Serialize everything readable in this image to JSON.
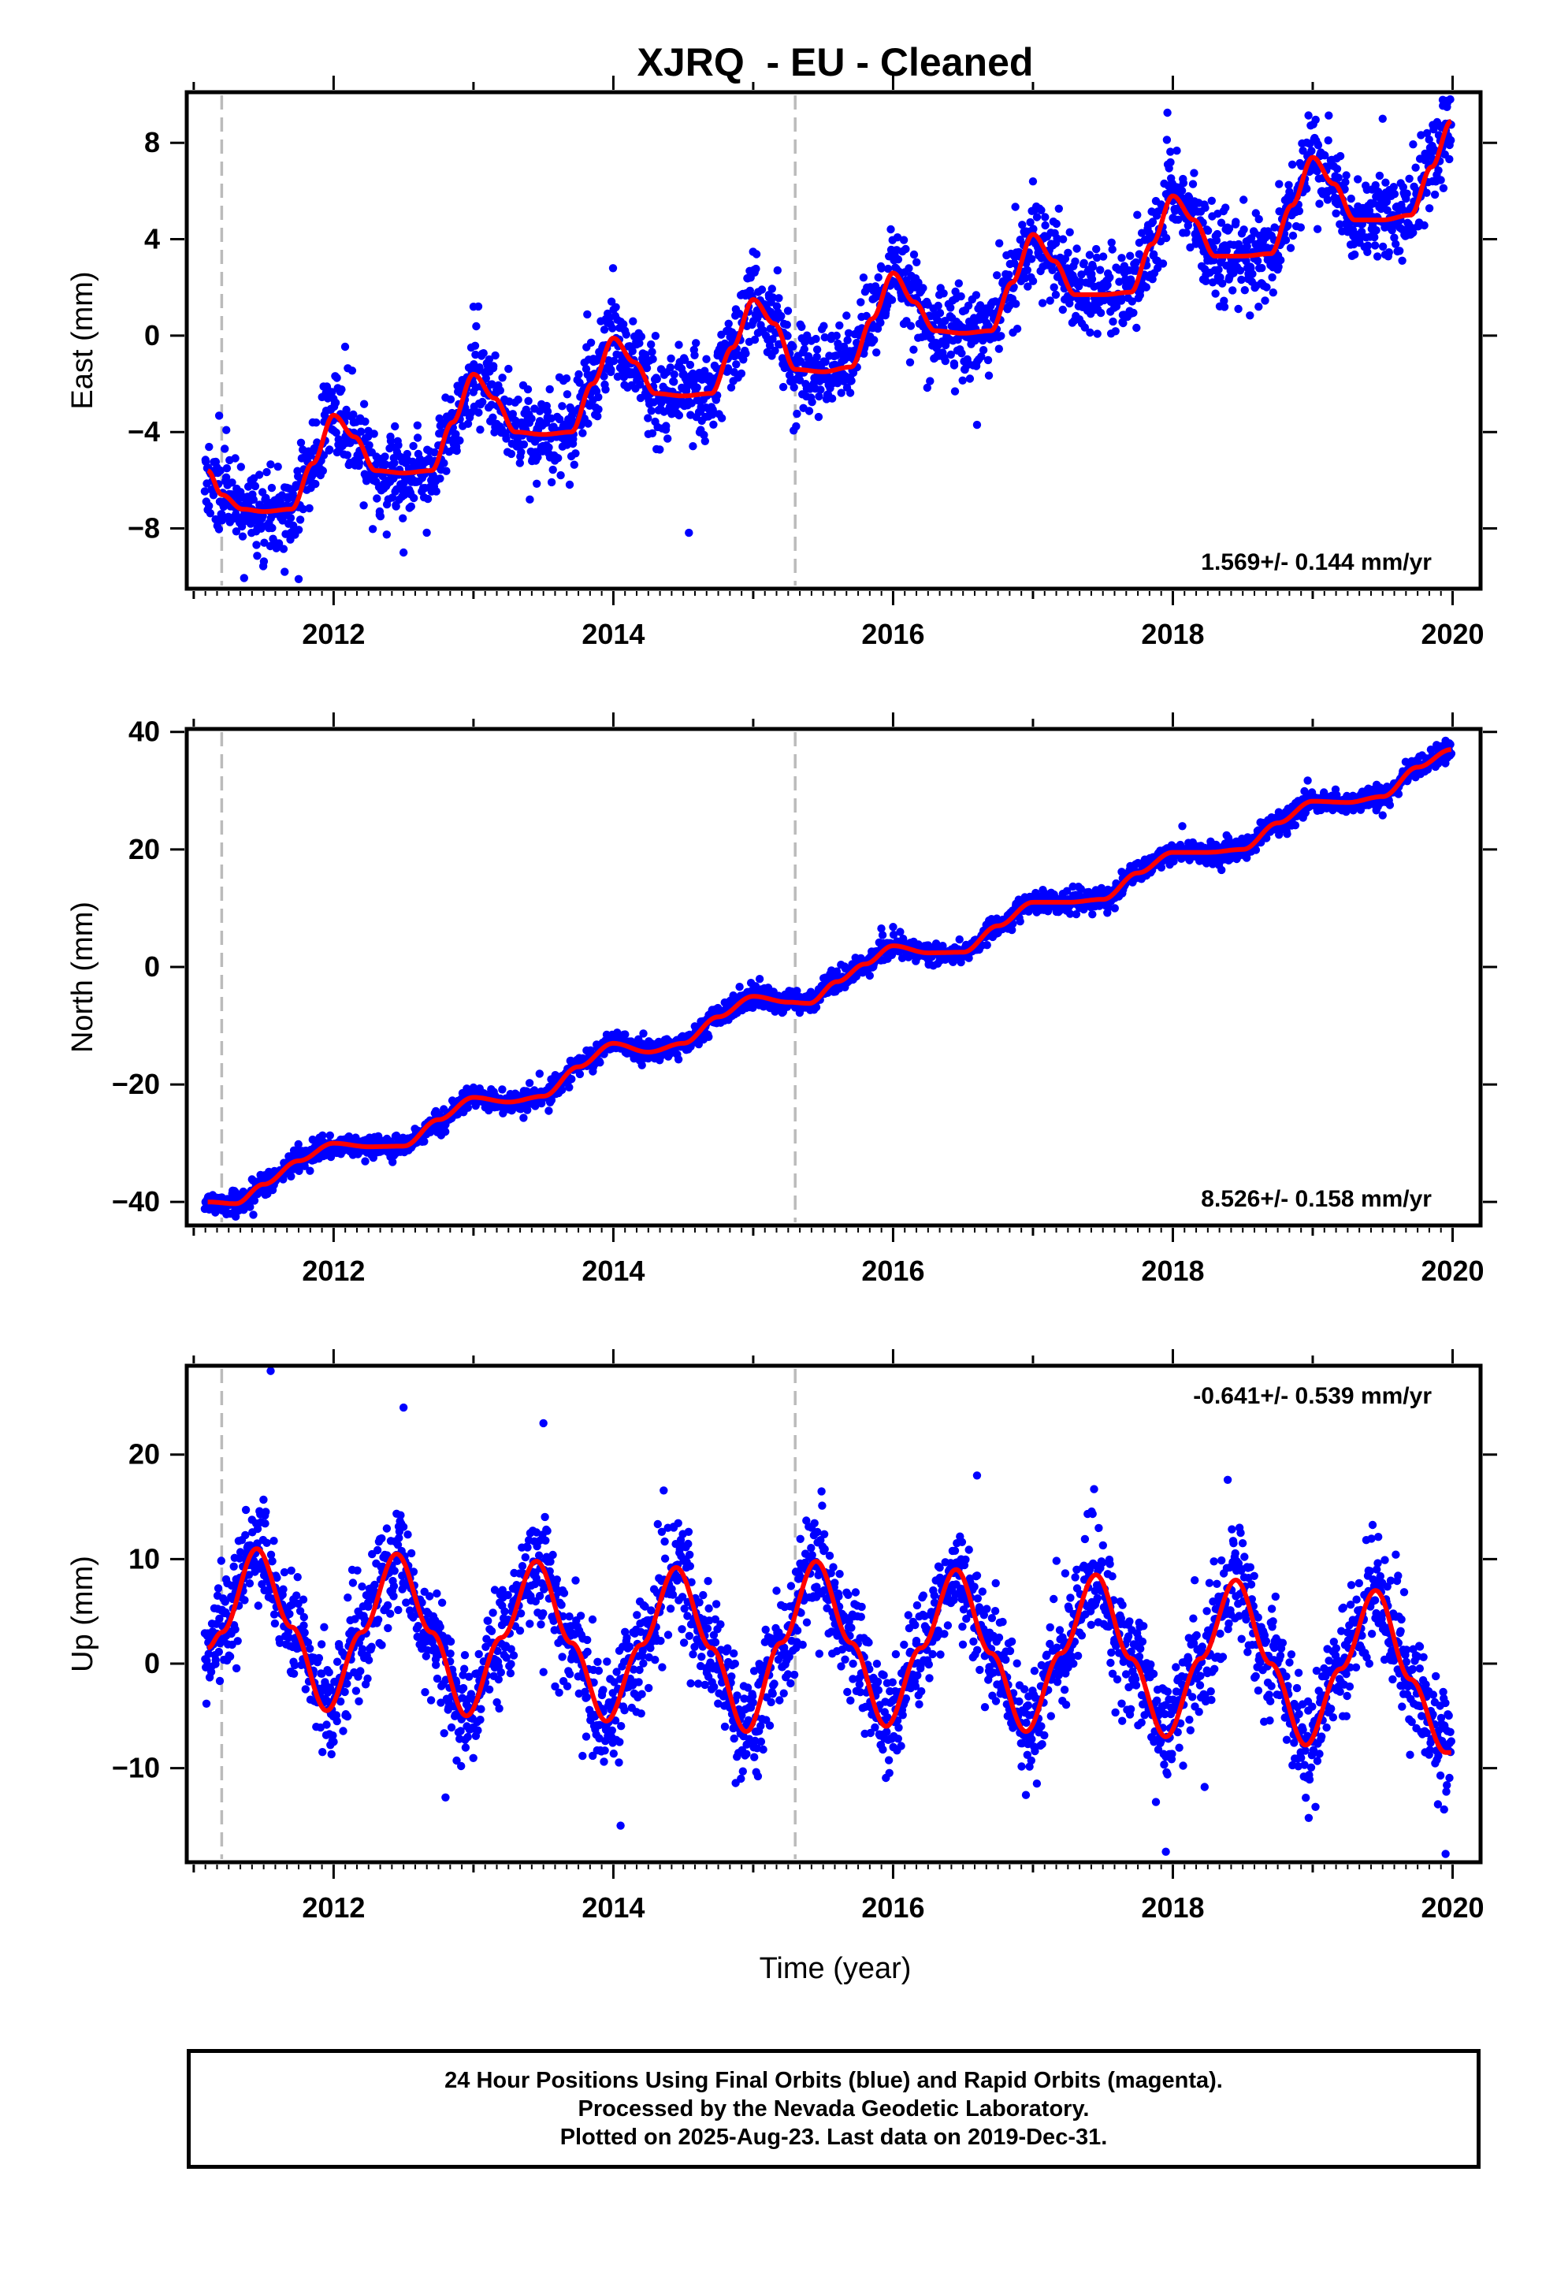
{
  "title": "XJRQ  - EU - Cleaned",
  "xlabel": "Time (year)",
  "footer": {
    "line1": "24 Hour Positions Using Final Orbits (blue) and Rapid Orbits (magenta).",
    "line2": "Processed by the Nevada Geodetic Laboratory.",
    "line3": "Plotted on 2025-Aug-23. Last data on 2019-Dec-31."
  },
  "colors": {
    "points": "#0000ff",
    "model": "#ff0000",
    "breaks": "#bbbbbb",
    "frame": "#000000"
  },
  "chart_data": [
    {
      "type": "scatter",
      "name": "east",
      "ylabel": "East (mm)",
      "rate_label": "1.569+/- 0.144 mm/yr",
      "rate_position": "bottom-right",
      "xlim": [
        2010.95,
        2020.2
      ],
      "ylim": [
        -10.5,
        10.1
      ],
      "x_ticks": [
        "2012",
        "2014",
        "2016",
        "2018",
        "2020"
      ],
      "y_ticks": [
        "−8",
        "−4",
        "0",
        "4",
        "8"
      ],
      "y_tick_values": [
        -8,
        -4,
        0,
        4,
        8
      ],
      "breaks": [
        2011.2,
        2015.3
      ],
      "model": {
        "x": [
          2011.1,
          2011.2,
          2011.35,
          2011.5,
          2011.7,
          2011.85,
          2012.0,
          2012.15,
          2012.3,
          2012.5,
          2012.7,
          2012.85,
          2013.0,
          2013.15,
          2013.3,
          2013.5,
          2013.7,
          2013.85,
          2014.0,
          2014.15,
          2014.3,
          2014.5,
          2014.7,
          2014.85,
          2015.0,
          2015.15,
          2015.3,
          2015.5,
          2015.7,
          2015.85,
          2016.0,
          2016.15,
          2016.3,
          2016.5,
          2016.7,
          2016.85,
          2017.0,
          2017.15,
          2017.3,
          2017.5,
          2017.7,
          2017.85,
          2018.0,
          2018.15,
          2018.3,
          2018.5,
          2018.7,
          2018.85,
          2019.0,
          2019.15,
          2019.3,
          2019.5,
          2019.7,
          2019.85,
          2019.99
        ],
        "y": [
          -5.6,
          -6.6,
          -7.2,
          -7.3,
          -7.2,
          -5.3,
          -3.3,
          -4.2,
          -5.6,
          -5.7,
          -5.6,
          -3.6,
          -1.6,
          -2.6,
          -4.0,
          -4.1,
          -4.0,
          -2.0,
          -0.1,
          -1.1,
          -2.4,
          -2.5,
          -2.4,
          -0.5,
          1.5,
          0.5,
          -1.4,
          -1.5,
          -1.3,
          0.7,
          2.6,
          1.4,
          0.2,
          0.1,
          0.2,
          2.2,
          4.2,
          3.1,
          1.7,
          1.7,
          1.8,
          3.8,
          5.8,
          4.8,
          3.3,
          3.3,
          3.4,
          5.4,
          7.4,
          6.3,
          4.8,
          4.8,
          5.0,
          7.0,
          8.9
        ]
      },
      "scatter_params": {
        "seed": 11,
        "noise": 0.9,
        "outliers": [
          [
            2011.65,
            -9.8
          ],
          [
            2011.75,
            -10.1
          ],
          [
            2012.5,
            -9.0
          ],
          [
            2016.6,
            -3.7
          ],
          [
            2019.5,
            9.0
          ],
          [
            2019.95,
            9.7
          ],
          [
            2017.0,
            6.4
          ],
          [
            2013.0,
            1.2
          ]
        ]
      }
    },
    {
      "type": "scatter",
      "name": "north",
      "ylabel": "North (mm)",
      "rate_label": "8.526+/- 0.158 mm/yr",
      "rate_position": "bottom-right",
      "xlim": [
        2010.95,
        2020.2
      ],
      "ylim": [
        -44,
        40.5
      ],
      "x_ticks": [
        "2012",
        "2014",
        "2016",
        "2018",
        "2020"
      ],
      "y_ticks": [
        "−40",
        "−20",
        "0",
        "20",
        "40"
      ],
      "y_tick_values": [
        -40,
        -20,
        0,
        20,
        40
      ],
      "breaks": [
        2011.2,
        2015.3
      ],
      "model": {
        "x": [
          2011.1,
          2011.3,
          2011.5,
          2011.75,
          2012.0,
          2012.25,
          2012.5,
          2012.75,
          2013.0,
          2013.25,
          2013.5,
          2013.75,
          2014.0,
          2014.25,
          2014.5,
          2014.75,
          2015.0,
          2015.25,
          2015.4,
          2015.6,
          2015.8,
          2016.0,
          2016.25,
          2016.5,
          2016.75,
          2017.0,
          2017.25,
          2017.5,
          2017.75,
          2018.0,
          2018.25,
          2018.5,
          2018.75,
          2019.0,
          2019.25,
          2019.5,
          2019.75,
          2019.99
        ],
        "y": [
          -40.0,
          -40.3,
          -37.0,
          -33.0,
          -30.0,
          -30.6,
          -30.5,
          -26.0,
          -22.2,
          -23.0,
          -22.0,
          -17.0,
          -13.0,
          -14.5,
          -13.0,
          -8.5,
          -5.0,
          -6.0,
          -6.2,
          -2.5,
          0.5,
          3.6,
          2.4,
          2.5,
          7.0,
          11.0,
          11.0,
          11.5,
          16.0,
          19.5,
          19.5,
          20.0,
          24.5,
          28.2,
          28.0,
          29.0,
          34.0,
          37.0
        ]
      },
      "scatter_params": {
        "seed": 23,
        "noise": 0.9,
        "outliers": [
          [
            2011.3,
            -42.5
          ],
          [
            2019.5,
            25.8
          ],
          [
            2016.0,
            6.8
          ],
          [
            2019.95,
            38.5
          ]
        ]
      }
    },
    {
      "type": "scatter",
      "name": "up",
      "ylabel": "Up (mm)",
      "rate_label": "-0.641+/- 0.539 mm/yr",
      "rate_position": "top-right",
      "xlim": [
        2010.95,
        2020.2
      ],
      "ylim": [
        -19,
        28.5
      ],
      "x_ticks": [
        "2012",
        "2014",
        "2016",
        "2018",
        "2020"
      ],
      "y_ticks": [
        "−10",
        "0",
        "10",
        "20"
      ],
      "y_tick_values": [
        -10,
        0,
        10,
        20
      ],
      "breaks": [
        2011.2,
        2015.3
      ],
      "model": {
        "x": [
          2011.1,
          2011.2,
          2011.45,
          2011.7,
          2011.95,
          2012.2,
          2012.45,
          2012.7,
          2012.95,
          2013.2,
          2013.45,
          2013.7,
          2013.95,
          2014.2,
          2014.45,
          2014.7,
          2014.95,
          2015.2,
          2015.45,
          2015.7,
          2015.95,
          2016.2,
          2016.45,
          2016.7,
          2016.95,
          2017.2,
          2017.45,
          2017.7,
          2017.95,
          2018.2,
          2018.45,
          2018.7,
          2018.95,
          2019.2,
          2019.45,
          2019.7,
          2019.95,
          2019.99
        ],
        "y": [
          1.5,
          3.0,
          11.0,
          3.5,
          -4.5,
          3.0,
          10.5,
          3.0,
          -5.0,
          2.5,
          9.8,
          2.0,
          -5.5,
          1.8,
          9.2,
          1.5,
          -6.5,
          2.0,
          9.8,
          2.0,
          -6.0,
          1.5,
          9.0,
          1.0,
          -6.5,
          1.0,
          8.5,
          0.5,
          -7.0,
          0.5,
          8.0,
          0.0,
          -7.8,
          -0.5,
          7.0,
          -1.5,
          -8.5,
          -8.5
        ]
      },
      "scatter_params": {
        "seed": 37,
        "noise": 2.6,
        "outliers": [
          [
            2011.55,
            28.0
          ],
          [
            2012.5,
            24.5
          ],
          [
            2013.5,
            23.0
          ],
          [
            2017.95,
            -18.0
          ],
          [
            2019.95,
            -18.2
          ],
          [
            2012.8,
            -12.8
          ],
          [
            2016.6,
            18.0
          ]
        ]
      }
    }
  ]
}
